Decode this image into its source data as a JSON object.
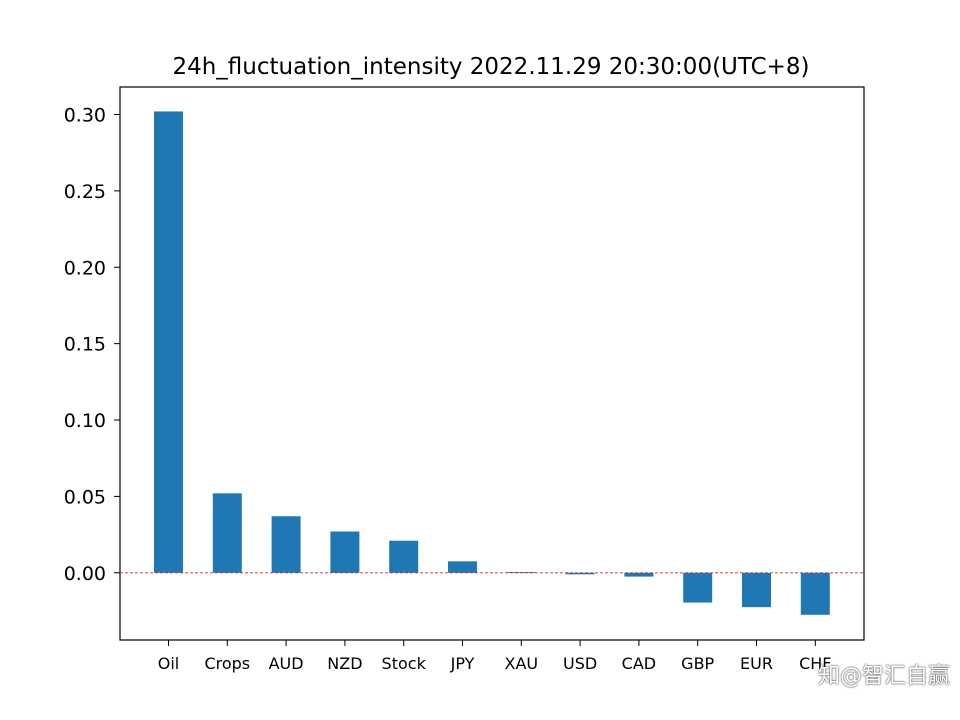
{
  "chart_data": {
    "type": "bar",
    "title": "24h_fluctuation_intensity 2022.11.29 20:30:00(UTC+8)",
    "xlabel": "",
    "ylabel": "",
    "categories": [
      "Oil",
      "Crops",
      "AUD",
      "NZD",
      "Stock",
      "JPY",
      "XAU",
      "USD",
      "CAD",
      "GBP",
      "EUR",
      "CHF"
    ],
    "values": [
      0.302,
      0.052,
      0.037,
      0.027,
      0.021,
      0.0075,
      0.0005,
      -0.001,
      -0.0025,
      -0.0195,
      -0.0225,
      -0.0275
    ],
    "ylim": [
      -0.044,
      0.318
    ],
    "yticks": [
      "0.30",
      "0.25",
      "0.20",
      "0.15",
      "0.10",
      "0.05",
      "0.00"
    ],
    "ytick_values": [
      0.3,
      0.25,
      0.2,
      0.15,
      0.1,
      0.05,
      0.0
    ],
    "grid": false,
    "reference_line": {
      "y": 0,
      "color": "#d62728",
      "style": "dashed"
    },
    "bar_color": "#1f77b4"
  },
  "watermark": "知@智汇自赢"
}
